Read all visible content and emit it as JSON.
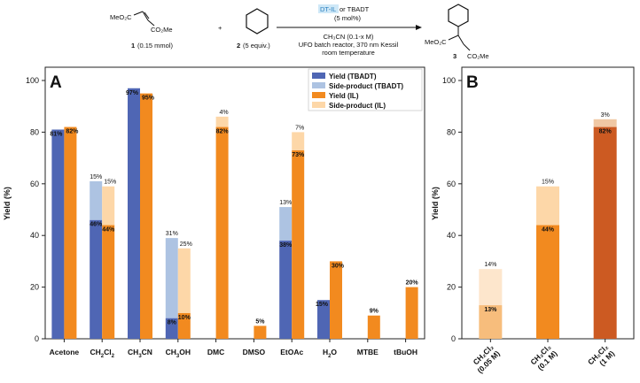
{
  "scheme": {
    "sm1_formula_top": "MeO₂C",
    "sm1_formula_bottom": "CO₂Me",
    "sm1_label": "1",
    "sm1_amount": "(0.15 mmol)",
    "plus": "+",
    "sm2_label": "2",
    "sm2_amount": "(5 equiv.)",
    "catalyst_highlight": "DT-IL",
    "catalyst_rest": " or TBADT",
    "catalyst_loading": "(5 mol%)",
    "solvent_line": "CH₃CN (0.1-x M)",
    "reactor_line": "UFO batch reactor, 370 nm Kessil",
    "temp_line": "room temperature",
    "prod_left": "MeO₂C",
    "prod_right": "CO₂Me",
    "prod_label": "3"
  },
  "colors": {
    "yield_tbadt": "#4f66b4",
    "side_tbadt": "#adc3e2",
    "yield_il": "#f28a1f",
    "side_il": "#fdd7a8",
    "highlight_bg": "#cfe8f7",
    "highlight_text": "#2a7fbf"
  },
  "chart_data": [
    {
      "panel": "A",
      "type": "bar",
      "ylabel": "Yield (%)",
      "ylim": [
        0,
        100
      ],
      "yticks": [
        0,
        20,
        40,
        60,
        80,
        100
      ],
      "legend_position": "top-right",
      "legend": [
        "Yield (TBADT)",
        "Side-product (TBADT)",
        "Yield (IL)",
        "Side-product (IL)"
      ],
      "categories": [
        {
          "main": "Acetone",
          "sub": ""
        },
        {
          "main": "CH",
          "sub": "2",
          "tail": "Cl",
          "sub2": "2"
        },
        {
          "main": "CH",
          "sub": "3",
          "tail": "CN",
          "sub2": ""
        },
        {
          "main": "CH",
          "sub": "3",
          "tail": "OH",
          "sub2": ""
        },
        {
          "main": "DMC",
          "sub": ""
        },
        {
          "main": "DMSO",
          "sub": ""
        },
        {
          "main": "EtOAc",
          "sub": ""
        },
        {
          "main": "H",
          "sub": "2",
          "tail": "O",
          "sub2": ""
        },
        {
          "main": "MTBE",
          "sub": ""
        },
        {
          "main": "tBuOH",
          "sub": ""
        }
      ],
      "series": [
        {
          "name": "Yield (TBADT)",
          "values": [
            81,
            46,
            97,
            8,
            null,
            null,
            38,
            15,
            null,
            null
          ],
          "labels": [
            "81%",
            "46%",
            "97%",
            "8%",
            "",
            "",
            "38%",
            "15%",
            "",
            ""
          ]
        },
        {
          "name": "Side-product (TBADT)",
          "values": [
            null,
            15,
            null,
            31,
            null,
            null,
            13,
            null,
            null,
            null
          ],
          "labels": [
            "",
            "15%",
            "",
            "31%",
            "",
            "",
            "13%",
            "",
            "",
            ""
          ]
        },
        {
          "name": "Yield (IL)",
          "values": [
            82,
            44,
            95,
            10,
            82,
            5,
            73,
            30,
            9,
            20
          ],
          "labels": [
            "82%",
            "44%",
            "95%",
            "10%",
            "82%",
            "5%",
            "73%",
            "30%",
            "9%",
            "20%"
          ]
        },
        {
          "name": "Side-product (IL)",
          "values": [
            null,
            15,
            null,
            25,
            4,
            null,
            7,
            null,
            null,
            null
          ],
          "labels": [
            "",
            "15%",
            "",
            "25%",
            "4%",
            "",
            "7%",
            "",
            "",
            ""
          ]
        }
      ]
    },
    {
      "panel": "B",
      "type": "bar",
      "ylabel": "Yield (%)",
      "ylim": [
        0,
        100
      ],
      "yticks": [
        0,
        20,
        40,
        60,
        80,
        100
      ],
      "categories": [
        {
          "line1": "CH₂Cl₂",
          "line2": "(0.05 M)"
        },
        {
          "line1": "CH₂Cl₂",
          "line2": "(0.1 M)"
        },
        {
          "line1": "CH₂Cl₂",
          "line2": "(1 M)"
        }
      ],
      "series": [
        {
          "name": "Yield",
          "values": [
            13,
            44,
            82
          ],
          "labels": [
            "13%",
            "44%",
            "82%"
          ],
          "colors": [
            "#f7bd7c",
            "#f28a1f",
            "#cc5a22"
          ]
        },
        {
          "name": "Side-product",
          "values": [
            14,
            15,
            3
          ],
          "labels": [
            "14%",
            "15%",
            "3%"
          ],
          "colors": [
            "#fde6cc",
            "#fdd7a8",
            "#f0c8a4"
          ]
        }
      ]
    }
  ]
}
